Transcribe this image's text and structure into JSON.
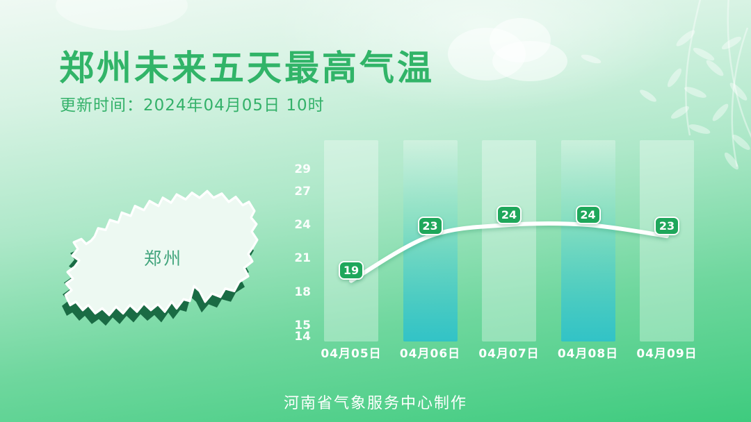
{
  "header": {
    "title": "郑州未来五天最高气温",
    "update_time": "更新时间：2024年04月05日 10时"
  },
  "map": {
    "label": "郑州"
  },
  "footer": {
    "credit": "河南省气象服务中心制作"
  },
  "colors": {
    "title_green": "#31b468",
    "badge_green": "#1fa75b",
    "highlight_bar_teal": "#2fc2c9",
    "map_shadow_dark_green": "#1a6b44",
    "map_face": "#edf9f2",
    "line_white": "#ffffff",
    "background_bottom_green": "#3ecb7e"
  },
  "chart_data": {
    "type": "line",
    "title": "郑州未来五天最高气温",
    "categories": [
      "04月05日",
      "04月06日",
      "04月07日",
      "04月08日",
      "04月09日"
    ],
    "series": [
      {
        "name": "最高气温",
        "values": [
          19,
          23,
          24,
          24,
          23
        ]
      }
    ],
    "yticks": [
      29,
      27,
      24,
      21,
      18,
      15,
      14
    ],
    "ylim": [
      14,
      31
    ],
    "grid": false,
    "legend_visible": false,
    "highlight_indices": [
      1,
      3
    ],
    "point_labels": [
      19,
      23,
      24,
      24,
      23
    ]
  }
}
